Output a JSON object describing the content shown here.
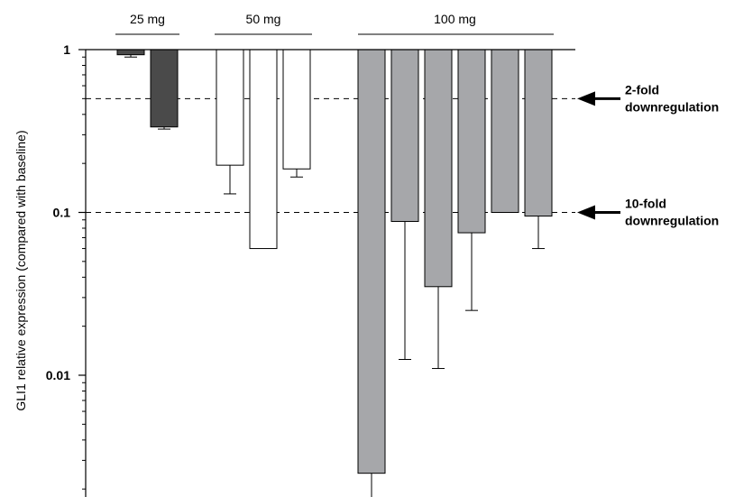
{
  "chart_data": {
    "type": "bar",
    "ylabel": "GLI1 relative expression (compared with baseline)",
    "yscale": "log",
    "ylim": [
      0.0015,
      1
    ],
    "yticks": [
      {
        "value": 1,
        "label": "1"
      },
      {
        "value": 0.1,
        "label": "0.1"
      },
      {
        "value": 0.01,
        "label": "0.01"
      }
    ],
    "bar_baseline": 1,
    "groups": [
      {
        "label": "25 mg",
        "color": "#4a4a4a",
        "bars": [
          {
            "value": 0.93,
            "error_low": 0.9
          },
          {
            "value": 0.335,
            "error_low": 0.325
          }
        ]
      },
      {
        "label": "50 mg",
        "color": "#ffffff",
        "bars": [
          {
            "value": 0.195,
            "error_low": 0.13
          },
          {
            "value": 0.06,
            "error_low": null
          },
          {
            "value": 0.185,
            "error_low": 0.165
          }
        ]
      },
      {
        "label": "100 mg",
        "color": "#a6a7aa",
        "bars": [
          {
            "value": 0.0025,
            "error_low": 0.0015
          },
          {
            "value": 0.088,
            "error_low": 0.0125
          },
          {
            "value": 0.035,
            "error_low": 0.011
          },
          {
            "value": 0.075,
            "error_low": 0.025
          },
          {
            "value": 0.1,
            "error_low": null
          },
          {
            "value": 0.095,
            "error_low": 0.06
          }
        ]
      }
    ],
    "reference_lines": [
      {
        "value": 0.5,
        "label_line1": "2-fold",
        "label_line2": "downregulation"
      },
      {
        "value": 0.1,
        "label_line1": "10-fold",
        "label_line2": "downregulation"
      }
    ]
  }
}
